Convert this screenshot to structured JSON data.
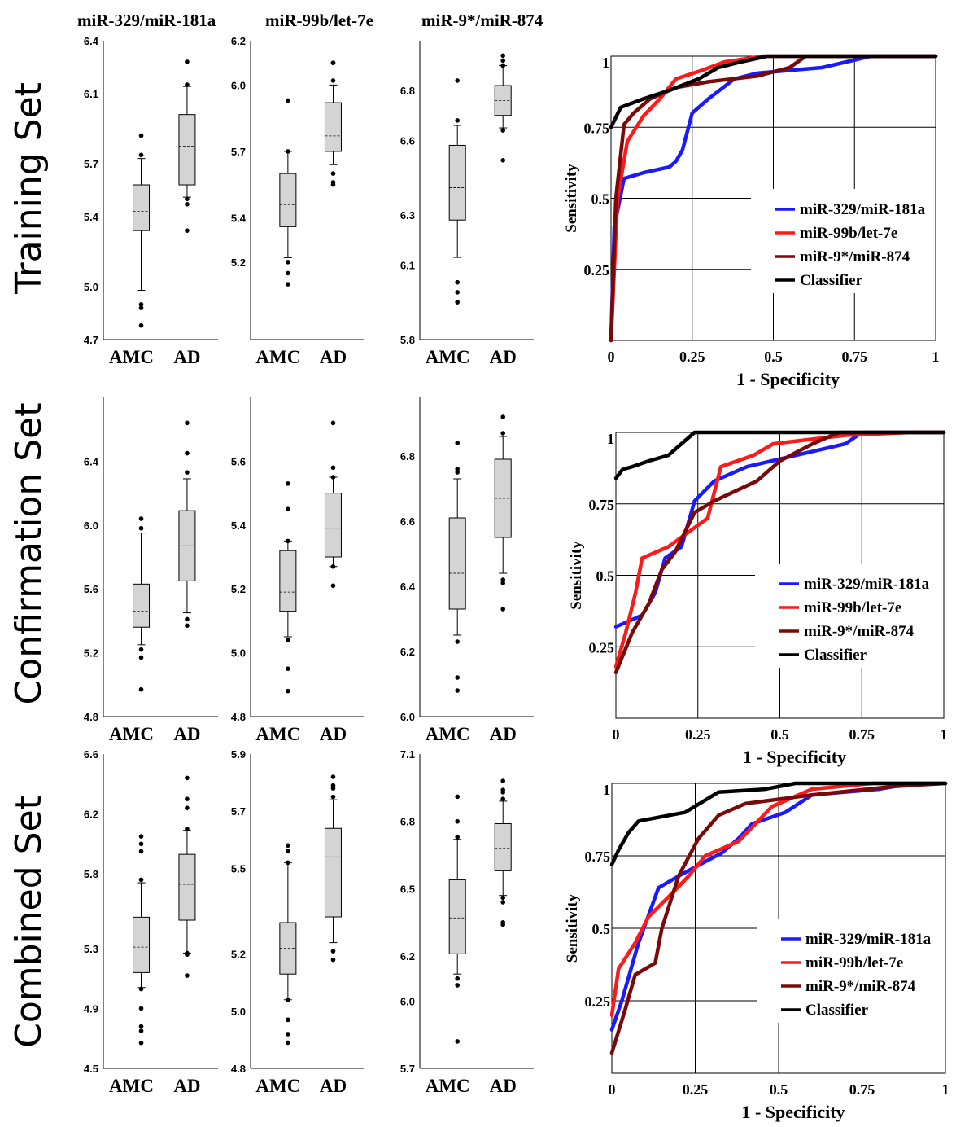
{
  "column_titles": [
    "miR-329/miR-181a",
    "miR-99b/let-7e",
    "miR-9*/miR-874"
  ],
  "row_labels": [
    "Training Set",
    "Confirmation Set",
    "Combined Set"
  ],
  "group_labels": [
    "AMC",
    "AD"
  ],
  "roc": {
    "xlabel": "1 - Specificity",
    "ylabel": "Sensitivity",
    "tick_labels": [
      "0",
      "0.25",
      "0.5",
      "0.75",
      "1"
    ]
  },
  "series_colors": [
    "#1a1aff",
    "#ff1a1a",
    "#7a0a0a",
    "#000000"
  ],
  "chart_data": [
    {
      "type": "box",
      "title": "miR-329/miR-181a",
      "row": "Training Set",
      "ylim": [
        4.7,
        6.4
      ],
      "yticks": [
        "4.7",
        "5.0",
        "5.4",
        "5.7",
        "6.1",
        "6.4"
      ],
      "categories": [
        "AMC",
        "AD"
      ],
      "boxes": [
        {
          "whislo": 4.98,
          "q1": 5.32,
          "med": 5.43,
          "q3": 5.58,
          "whishi": 5.73,
          "fliers": [
            5.75,
            5.86,
            4.9,
            4.88,
            4.78
          ]
        },
        {
          "whislo": 5.51,
          "q1": 5.58,
          "med": 5.8,
          "q3": 5.98,
          "whishi": 6.14,
          "fliers": [
            6.15,
            6.28,
            5.5,
            5.47,
            5.32
          ]
        }
      ]
    },
    {
      "type": "box",
      "title": "miR-99b/let-7e",
      "row": "Training Set",
      "ylim": [
        4.85,
        6.2
      ],
      "yticks": [
        "5.2",
        "5.4",
        "5.7",
        "6.0",
        "6.2"
      ],
      "categories": [
        "AMC",
        "AD"
      ],
      "boxes": [
        {
          "whislo": 5.22,
          "q1": 5.36,
          "med": 5.46,
          "q3": 5.6,
          "whishi": 5.7,
          "fliers": [
            5.7,
            5.93,
            5.2,
            5.15,
            5.1
          ]
        },
        {
          "whislo": 5.64,
          "q1": 5.7,
          "med": 5.77,
          "q3": 5.92,
          "whishi": 6.0,
          "fliers": [
            6.02,
            6.1,
            6.1,
            5.6,
            5.56,
            5.55
          ]
        }
      ]
    },
    {
      "type": "box",
      "title": "miR-9*/miR-874",
      "row": "Training Set",
      "ylim": [
        5.8,
        7.0
      ],
      "yticks": [
        "5.8",
        "6.1",
        "6.3",
        "6.6",
        "6.8"
      ],
      "categories": [
        "AMC",
        "AD"
      ],
      "boxes": [
        {
          "whislo": 6.13,
          "q1": 6.28,
          "med": 6.41,
          "q3": 6.58,
          "whishi": 6.66,
          "fliers": [
            6.68,
            6.84,
            6.03,
            5.99,
            5.95
          ]
        },
        {
          "whislo": 6.65,
          "q1": 6.7,
          "med": 6.76,
          "q3": 6.82,
          "whishi": 6.9,
          "fliers": [
            6.9,
            6.92,
            6.94,
            6.64,
            6.52
          ]
        }
      ]
    },
    {
      "type": "line",
      "title": "",
      "row": "Training Set",
      "xlabel": "1 - Specificity",
      "ylabel": "Sensitivity",
      "xlim": [
        0,
        1
      ],
      "ylim": [
        0,
        1
      ],
      "series": [
        {
          "name": "miR-329/miR-181a",
          "points": [
            [
              0,
              0
            ],
            [
              0.01,
              0.4
            ],
            [
              0.04,
              0.57
            ],
            [
              0.1,
              0.59
            ],
            [
              0.18,
              0.61
            ],
            [
              0.2,
              0.63
            ],
            [
              0.22,
              0.67
            ],
            [
              0.25,
              0.8
            ],
            [
              0.3,
              0.85
            ],
            [
              0.38,
              0.92
            ],
            [
              0.45,
              0.94
            ],
            [
              0.65,
              0.96
            ],
            [
              0.8,
              1
            ],
            [
              1,
              1
            ]
          ]
        },
        {
          "name": "miR-99b/let-7e",
          "points": [
            [
              0,
              0
            ],
            [
              0.02,
              0.5
            ],
            [
              0.05,
              0.7
            ],
            [
              0.1,
              0.79
            ],
            [
              0.15,
              0.85
            ],
            [
              0.2,
              0.92
            ],
            [
              0.28,
              0.95
            ],
            [
              0.35,
              0.98
            ],
            [
              0.47,
              1
            ],
            [
              1,
              1
            ]
          ]
        },
        {
          "name": "miR-9*/miR-874",
          "points": [
            [
              0,
              0
            ],
            [
              0.015,
              0.5
            ],
            [
              0.04,
              0.76
            ],
            [
              0.07,
              0.8
            ],
            [
              0.12,
              0.85
            ],
            [
              0.2,
              0.89
            ],
            [
              0.3,
              0.91
            ],
            [
              0.45,
              0.93
            ],
            [
              0.55,
              0.96
            ],
            [
              0.6,
              1
            ],
            [
              1,
              1
            ]
          ]
        },
        {
          "name": "Classifier",
          "points": [
            [
              0,
              0.75
            ],
            [
              0.03,
              0.82
            ],
            [
              0.1,
              0.85
            ],
            [
              0.18,
              0.88
            ],
            [
              0.27,
              0.92
            ],
            [
              0.33,
              0.96
            ],
            [
              0.4,
              0.98
            ],
            [
              0.48,
              1
            ],
            [
              1,
              1
            ]
          ]
        }
      ]
    },
    {
      "type": "box",
      "title": "miR-329/miR-181a",
      "row": "Confirmation Set",
      "ylim": [
        4.8,
        6.8
      ],
      "yticks": [
        "4.8",
        "5.2",
        "5.6",
        "6.0",
        "6.4"
      ],
      "categories": [
        "AMC",
        "AD"
      ],
      "boxes": [
        {
          "whislo": 5.25,
          "q1": 5.36,
          "med": 5.46,
          "q3": 5.63,
          "whishi": 5.95,
          "fliers": [
            5.98,
            6.04,
            5.22,
            5.17,
            4.97
          ]
        },
        {
          "whislo": 5.45,
          "q1": 5.65,
          "med": 5.87,
          "q3": 6.09,
          "whishi": 6.29,
          "fliers": [
            6.33,
            6.45,
            6.64,
            5.41,
            5.37
          ]
        }
      ]
    },
    {
      "type": "box",
      "title": "miR-99b/let-7e",
      "row": "Confirmation Set",
      "ylim": [
        4.8,
        5.8
      ],
      "yticks": [
        "4.8",
        "5.0",
        "5.2",
        "5.4",
        "5.6"
      ],
      "categories": [
        "AMC",
        "AD"
      ],
      "boxes": [
        {
          "whislo": 5.05,
          "q1": 5.13,
          "med": 5.19,
          "q3": 5.32,
          "whishi": 5.35,
          "fliers": [
            5.35,
            5.45,
            5.53,
            5.04,
            4.95,
            4.88
          ]
        },
        {
          "whislo": 5.27,
          "q1": 5.3,
          "med": 5.39,
          "q3": 5.5,
          "whishi": 5.55,
          "fliers": [
            5.55,
            5.58,
            5.72,
            5.27,
            5.21
          ]
        }
      ]
    },
    {
      "type": "box",
      "title": "miR-9*/miR-874",
      "row": "Confirmation Set",
      "ylim": [
        6.0,
        6.98
      ],
      "yticks": [
        "6.0",
        "6.2",
        "6.4",
        "6.6",
        "6.8"
      ],
      "categories": [
        "AMC",
        "AD"
      ],
      "boxes": [
        {
          "whislo": 6.25,
          "q1": 6.33,
          "med": 6.44,
          "q3": 6.61,
          "whishi": 6.73,
          "fliers": [
            6.75,
            6.76,
            6.84,
            6.23,
            6.12,
            6.08
          ]
        },
        {
          "whislo": 6.44,
          "q1": 6.55,
          "med": 6.67,
          "q3": 6.79,
          "whishi": 6.86,
          "fliers": [
            6.87,
            6.92,
            6.42,
            6.41,
            6.33
          ]
        }
      ]
    },
    {
      "type": "line",
      "title": "",
      "row": "Confirmation Set",
      "xlabel": "1 - Specificity",
      "ylabel": "Sensitivity",
      "xlim": [
        0,
        1
      ],
      "ylim": [
        0,
        1
      ],
      "series": [
        {
          "name": "miR-329/miR-181a",
          "points": [
            [
              0,
              0.32
            ],
            [
              0.04,
              0.34
            ],
            [
              0.08,
              0.36
            ],
            [
              0.12,
              0.44
            ],
            [
              0.15,
              0.56
            ],
            [
              0.2,
              0.6
            ],
            [
              0.24,
              0.76
            ],
            [
              0.3,
              0.83
            ],
            [
              0.4,
              0.88
            ],
            [
              0.55,
              0.92
            ],
            [
              0.7,
              0.96
            ],
            [
              0.75,
              1
            ],
            [
              1,
              1
            ]
          ]
        },
        {
          "name": "miR-99b/let-7e",
          "points": [
            [
              0,
              0.18
            ],
            [
              0.03,
              0.3
            ],
            [
              0.06,
              0.44
            ],
            [
              0.08,
              0.56
            ],
            [
              0.16,
              0.6
            ],
            [
              0.28,
              0.7
            ],
            [
              0.32,
              0.88
            ],
            [
              0.42,
              0.92
            ],
            [
              0.48,
              0.96
            ],
            [
              0.7,
              0.99
            ],
            [
              0.9,
              1
            ],
            [
              1,
              1
            ]
          ]
        },
        {
          "name": "miR-9*/miR-874",
          "points": [
            [
              0,
              0.16
            ],
            [
              0.05,
              0.3
            ],
            [
              0.1,
              0.4
            ],
            [
              0.14,
              0.52
            ],
            [
              0.18,
              0.58
            ],
            [
              0.24,
              0.72
            ],
            [
              0.3,
              0.76
            ],
            [
              0.43,
              0.83
            ],
            [
              0.5,
              0.9
            ],
            [
              0.6,
              0.96
            ],
            [
              0.68,
              1
            ],
            [
              1,
              1
            ]
          ]
        },
        {
          "name": "Classifier",
          "points": [
            [
              0,
              0.84
            ],
            [
              0.02,
              0.87
            ],
            [
              0.05,
              0.88
            ],
            [
              0.1,
              0.9
            ],
            [
              0.16,
              0.92
            ],
            [
              0.2,
              0.96
            ],
            [
              0.24,
              1
            ],
            [
              1,
              1
            ]
          ]
        }
      ]
    },
    {
      "type": "box",
      "title": "miR-329/miR-181a",
      "row": "Combined Set",
      "ylim": [
        4.5,
        6.6
      ],
      "yticks": [
        "4.5",
        "4.9",
        "5.3",
        "5.8",
        "6.2",
        "6.6"
      ],
      "categories": [
        "AMC",
        "AD"
      ],
      "boxes": [
        {
          "whislo": 5.04,
          "q1": 5.14,
          "med": 5.31,
          "q3": 5.51,
          "whishi": 5.74,
          "fliers": [
            5.76,
            5.95,
            6.0,
            6.05,
            5.03,
            4.9,
            4.78,
            4.75,
            4.67
          ]
        },
        {
          "whislo": 5.27,
          "q1": 5.49,
          "med": 5.73,
          "q3": 5.93,
          "whishi": 6.09,
          "fliers": [
            6.1,
            6.24,
            6.3,
            6.44,
            5.26,
            5.27,
            5.12
          ]
        }
      ]
    },
    {
      "type": "box",
      "title": "miR-99b/let-7e",
      "row": "Combined Set",
      "ylim": [
        4.8,
        5.9
      ],
      "yticks": [
        "4.8",
        "5.0",
        "5.2",
        "5.5",
        "5.7",
        "5.9"
      ],
      "categories": [
        "AMC",
        "AD"
      ],
      "boxes": [
        {
          "whislo": 5.04,
          "q1": 5.13,
          "med": 5.22,
          "q3": 5.31,
          "whishi": 5.52,
          "fliers": [
            5.52,
            5.56,
            5.58,
            5.04,
            4.97,
            4.97,
            4.92,
            4.89
          ]
        },
        {
          "whislo": 5.24,
          "q1": 5.33,
          "med": 5.54,
          "q3": 5.64,
          "whishi": 5.74,
          "fliers": [
            5.75,
            5.78,
            5.79,
            5.82,
            5.21,
            5.18
          ]
        }
      ]
    },
    {
      "type": "box",
      "title": "miR-9*/miR-874",
      "row": "Combined Set",
      "ylim": [
        5.7,
        7.1
      ],
      "yticks": [
        "5.7",
        "6.0",
        "6.2",
        "6.5",
        "6.8",
        "7.1"
      ],
      "categories": [
        "AMC",
        "AD"
      ],
      "boxes": [
        {
          "whislo": 6.12,
          "q1": 6.21,
          "med": 6.37,
          "q3": 6.54,
          "whishi": 6.72,
          "fliers": [
            6.73,
            6.8,
            6.91,
            6.1,
            6.07,
            5.82
          ]
        },
        {
          "whislo": 6.47,
          "q1": 6.58,
          "med": 6.68,
          "q3": 6.79,
          "whishi": 6.89,
          "fliers": [
            6.9,
            6.93,
            6.94,
            6.98,
            6.46,
            6.44,
            6.35,
            6.34
          ]
        }
      ]
    },
    {
      "type": "line",
      "title": "",
      "row": "Combined Set",
      "xlabel": "1 - Specificity",
      "ylabel": "Sensitivity",
      "xlim": [
        0,
        1
      ],
      "ylim": [
        0,
        1
      ],
      "series": [
        {
          "name": "miR-329/miR-181a",
          "points": [
            [
              0,
              0.15
            ],
            [
              0.03,
              0.25
            ],
            [
              0.08,
              0.45
            ],
            [
              0.14,
              0.64
            ],
            [
              0.2,
              0.68
            ],
            [
              0.28,
              0.73
            ],
            [
              0.33,
              0.76
            ],
            [
              0.38,
              0.81
            ],
            [
              0.42,
              0.86
            ],
            [
              0.52,
              0.9
            ],
            [
              0.6,
              0.96
            ],
            [
              0.8,
              0.98
            ],
            [
              0.9,
              1
            ],
            [
              1,
              1
            ]
          ]
        },
        {
          "name": "miR-99b/let-7e",
          "points": [
            [
              0,
              0.2
            ],
            [
              0.02,
              0.36
            ],
            [
              0.07,
              0.45
            ],
            [
              0.11,
              0.54
            ],
            [
              0.18,
              0.62
            ],
            [
              0.23,
              0.68
            ],
            [
              0.28,
              0.75
            ],
            [
              0.38,
              0.8
            ],
            [
              0.48,
              0.92
            ],
            [
              0.6,
              0.98
            ],
            [
              0.78,
              1
            ],
            [
              1,
              1
            ]
          ]
        },
        {
          "name": "miR-9*/miR-874",
          "points": [
            [
              0,
              0.07
            ],
            [
              0.04,
              0.22
            ],
            [
              0.07,
              0.34
            ],
            [
              0.13,
              0.38
            ],
            [
              0.15,
              0.5
            ],
            [
              0.2,
              0.68
            ],
            [
              0.26,
              0.81
            ],
            [
              0.32,
              0.89
            ],
            [
              0.4,
              0.93
            ],
            [
              0.6,
              0.96
            ],
            [
              0.85,
              0.99
            ],
            [
              1,
              1
            ]
          ]
        },
        {
          "name": "Classifier",
          "points": [
            [
              0,
              0.72
            ],
            [
              0.02,
              0.77
            ],
            [
              0.05,
              0.83
            ],
            [
              0.08,
              0.87
            ],
            [
              0.22,
              0.9
            ],
            [
              0.32,
              0.97
            ],
            [
              0.46,
              0.98
            ],
            [
              0.55,
              1
            ],
            [
              1,
              1
            ]
          ]
        }
      ]
    }
  ]
}
